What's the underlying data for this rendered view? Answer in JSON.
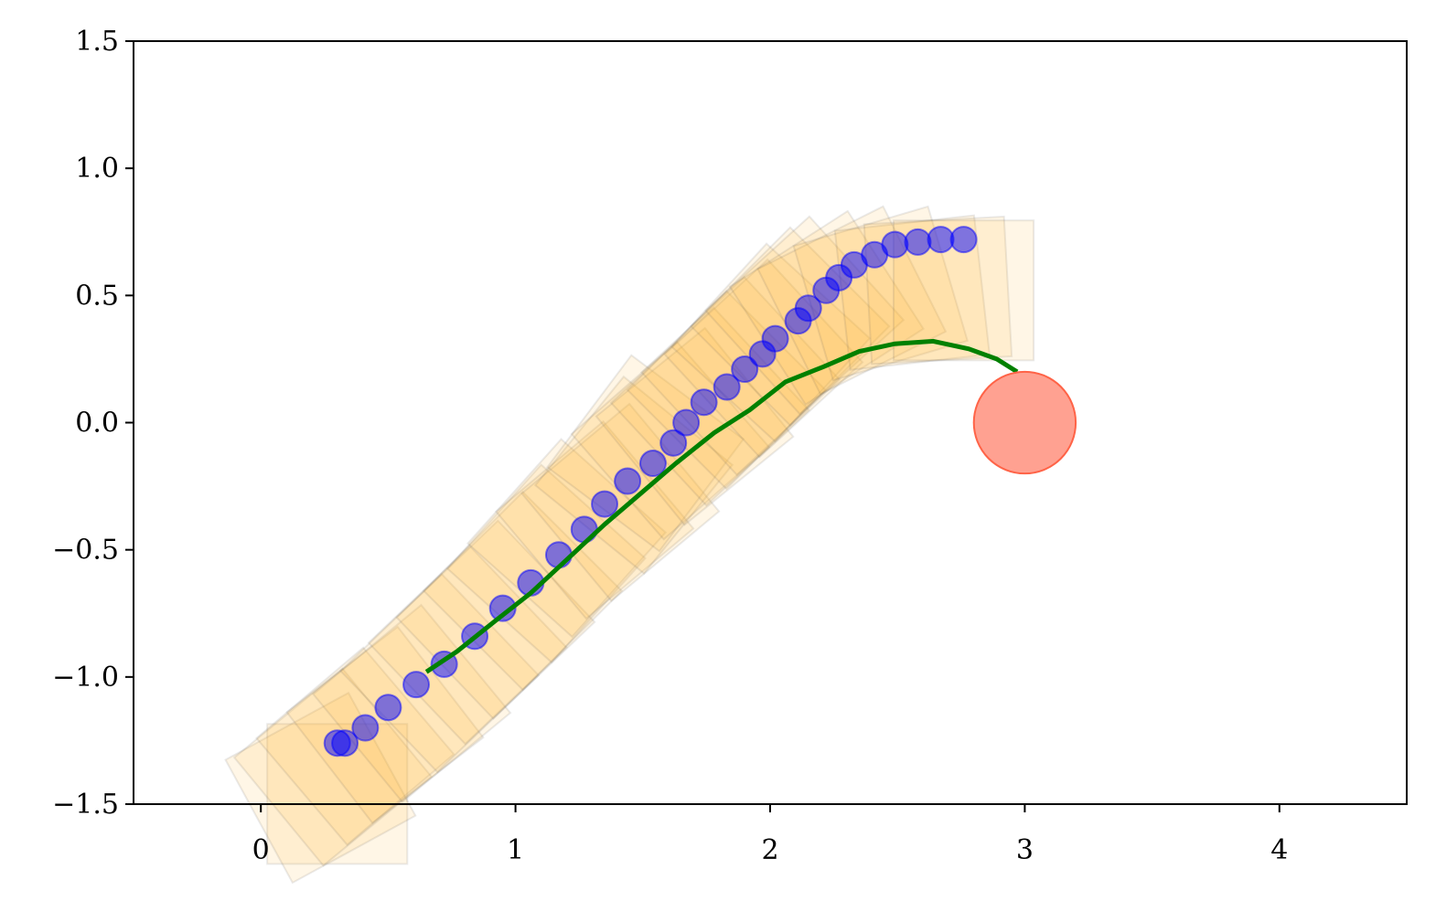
{
  "chart_data": {
    "type": "composite",
    "xlim": [
      -0.5,
      4.5
    ],
    "ylim": [
      -1.5,
      1.5
    ],
    "xticks": [
      0,
      1,
      2,
      3,
      4
    ],
    "yticks": [
      {
        "value": -1.5,
        "label": "−1.5"
      },
      {
        "value": -1.0,
        "label": "−1.0"
      },
      {
        "value": -0.5,
        "label": "−0.5"
      },
      {
        "value": 0.0,
        "label": "0.0"
      },
      {
        "value": 0.5,
        "label": "0.5"
      },
      {
        "value": 1.0,
        "label": "1.0"
      },
      {
        "value": 1.5,
        "label": "1.5"
      }
    ],
    "series": [
      {
        "type": "poses",
        "color": "#ffb732",
        "x": [
          0.3,
          0.33,
          0.41,
          0.5,
          0.61,
          0.72,
          0.84,
          0.95,
          1.06,
          1.17,
          1.27,
          1.35,
          1.44,
          1.54,
          1.62,
          1.67,
          1.74,
          1.83,
          1.9,
          1.97,
          2.02,
          2.11,
          2.15,
          2.22,
          2.27,
          2.33,
          2.41,
          2.49,
          2.58,
          2.67,
          2.76
        ],
        "values": [
          -1.26,
          -1.26,
          -1.2,
          -1.12,
          -1.03,
          -0.95,
          -0.84,
          -0.73,
          -0.63,
          -0.52,
          -0.42,
          -0.32,
          -0.23,
          -0.16,
          -0.08,
          0.0,
          0.08,
          0.14,
          0.21,
          0.27,
          0.33,
          0.4,
          0.45,
          0.52,
          0.57,
          0.62,
          0.66,
          0.7,
          0.71,
          0.72,
          0.72
        ]
      },
      {
        "type": "scatter",
        "color": "#0000ff",
        "x": [
          0.3,
          0.33,
          0.41,
          0.5,
          0.61,
          0.72,
          0.84,
          0.95,
          1.06,
          1.17,
          1.27,
          1.35,
          1.44,
          1.54,
          1.62,
          1.67,
          1.74,
          1.83,
          1.9,
          1.97,
          2.02,
          2.11,
          2.15,
          2.22,
          2.27,
          2.33,
          2.41,
          2.49,
          2.58,
          2.67,
          2.76
        ],
        "values": [
          -1.26,
          -1.26,
          -1.2,
          -1.12,
          -1.03,
          -0.95,
          -0.84,
          -0.73,
          -0.63,
          -0.52,
          -0.42,
          -0.32,
          -0.23,
          -0.16,
          -0.08,
          0.0,
          0.08,
          0.14,
          0.21,
          0.27,
          0.33,
          0.4,
          0.45,
          0.52,
          0.57,
          0.62,
          0.66,
          0.7,
          0.71,
          0.72,
          0.72
        ]
      },
      {
        "type": "line",
        "color": "#008000",
        "x": [
          0.65,
          0.77,
          0.92,
          1.06,
          1.2,
          1.35,
          1.49,
          1.63,
          1.78,
          1.92,
          2.06,
          2.21,
          2.35,
          2.49,
          2.64,
          2.78,
          2.89,
          2.97
        ],
        "values": [
          -0.98,
          -0.9,
          -0.78,
          -0.67,
          -0.54,
          -0.4,
          -0.28,
          -0.16,
          -0.04,
          0.05,
          0.16,
          0.22,
          0.28,
          0.31,
          0.32,
          0.29,
          0.25,
          0.2
        ]
      },
      {
        "type": "circle",
        "color": "#ff6347",
        "x": [
          3.0
        ],
        "values": [
          0.0
        ],
        "radius": 0.2
      }
    ]
  }
}
